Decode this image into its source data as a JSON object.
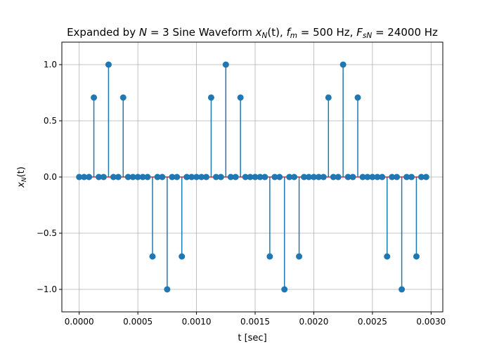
{
  "chart_data": {
    "type": "stem",
    "title": {
      "prefix": "Expanded by ",
      "n_symbol": "N",
      "n_eq": " = 3",
      "middle": " Sine Waveform ",
      "x_symbol": "x",
      "x_sub": "N",
      "x_arg": "(t)",
      "fm_symbol": "f",
      "fm_sub": "m",
      "fm_eq": " = 500 Hz, ",
      "fs_symbol": "F",
      "fs_sub": "sN",
      "fs_eq": " = 24000 Hz"
    },
    "xlabel": "t [sec]",
    "ylabel": {
      "symbol": "x",
      "sub": "N",
      "arg": "(t)"
    },
    "xlim": [
      -0.000148,
      0.0031
    ],
    "ylim": [
      -1.2,
      1.2
    ],
    "xticks": [
      "0.0000",
      "0.0005",
      "0.0010",
      "0.0015",
      "0.0020",
      "0.0025",
      "0.0030"
    ],
    "xtick_values": [
      0.0,
      0.0005,
      0.001,
      0.0015,
      0.002,
      0.0025,
      0.003
    ],
    "yticks": [
      "−1.0",
      "−0.5",
      "0.0",
      "0.5",
      "1.0"
    ],
    "ytick_values": [
      -1.0,
      -0.5,
      0.0,
      0.5,
      1.0
    ],
    "grid": true,
    "sample_period": 4.16667e-05,
    "x": [
      0.0,
      4.17e-05,
      8.33e-05,
      0.000125,
      0.000167,
      0.000208,
      0.00025,
      0.000292,
      0.000333,
      0.000375,
      0.000417,
      0.000458,
      0.0005,
      0.000542,
      0.000583,
      0.000625,
      0.000667,
      0.000708,
      0.00075,
      0.000792,
      0.000833,
      0.000875,
      0.000917,
      0.000958,
      0.001,
      0.001042,
      0.001083,
      0.001125,
      0.001167,
      0.001208,
      0.00125,
      0.001292,
      0.001333,
      0.001375,
      0.001417,
      0.001458,
      0.0015,
      0.001542,
      0.001583,
      0.001625,
      0.001667,
      0.001708,
      0.00175,
      0.001792,
      0.001833,
      0.001875,
      0.001917,
      0.001958,
      0.002,
      0.002042,
      0.002083,
      0.002125,
      0.002167,
      0.002208,
      0.00225,
      0.002292,
      0.002333,
      0.002375,
      0.002417,
      0.002458,
      0.0025,
      0.002542,
      0.002583,
      0.002625,
      0.002667,
      0.002708,
      0.00275,
      0.002792,
      0.002833,
      0.002875,
      0.002917,
      0.002958
    ],
    "values": [
      0,
      0,
      0,
      0.707,
      0,
      0,
      1.0,
      0,
      0,
      0.707,
      0,
      0,
      0,
      0,
      0,
      -0.707,
      0,
      0,
      -1.0,
      0,
      0,
      -0.707,
      0,
      0,
      0,
      0,
      0,
      0.707,
      0,
      0,
      1.0,
      0,
      0,
      0.707,
      0,
      0,
      0,
      0,
      0,
      -0.707,
      0,
      0,
      -1.0,
      0,
      0,
      -0.707,
      0,
      0,
      0,
      0,
      0,
      0.707,
      0,
      0,
      1.0,
      0,
      0,
      0.707,
      0,
      0,
      0,
      0,
      0,
      -0.707,
      0,
      0,
      -1.0,
      0,
      0,
      -0.707,
      0,
      0
    ],
    "colors": {
      "stem": "#1f77b4",
      "baseline": "#d62728",
      "grid": "#b0b0b0",
      "axes": "#000000"
    }
  }
}
